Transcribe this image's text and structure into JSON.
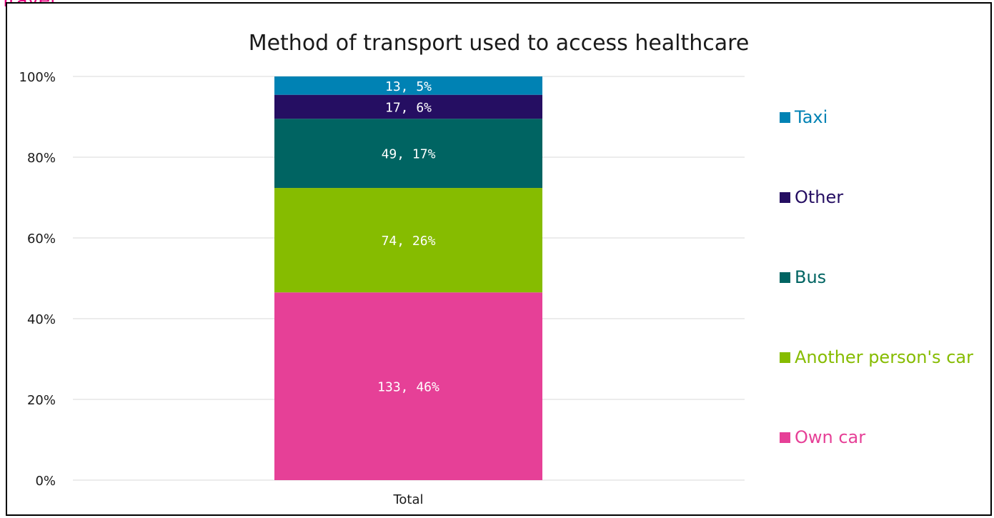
{
  "page_heading": "Travel",
  "chart_data": {
    "type": "bar",
    "stacked": true,
    "normalized": true,
    "title": "Method of transport used to access healthcare",
    "categories": [
      "Total"
    ],
    "xlabel": "",
    "ylabel": "",
    "ylim": [
      0,
      100
    ],
    "y_ticks": [
      "0%",
      "20%",
      "40%",
      "60%",
      "80%",
      "100%"
    ],
    "grid": true,
    "legend_position": "right",
    "series": [
      {
        "name": "Own car",
        "count": 133,
        "percent": 46,
        "label": "133, 46%",
        "color": "#e64097"
      },
      {
        "name": "Another person's car",
        "count": 74,
        "percent": 26,
        "label": "74, 26%",
        "color": "#86bc00"
      },
      {
        "name": "Bus",
        "count": 49,
        "percent": 17,
        "label": "49, 17%",
        "color": "#006462"
      },
      {
        "name": "Other",
        "count": 17,
        "percent": 6,
        "label": "17, 6%",
        "color": "#250e62"
      },
      {
        "name": "Taxi",
        "count": 13,
        "percent": 5,
        "label": "13, 5%",
        "color": "#0082b4"
      }
    ]
  }
}
